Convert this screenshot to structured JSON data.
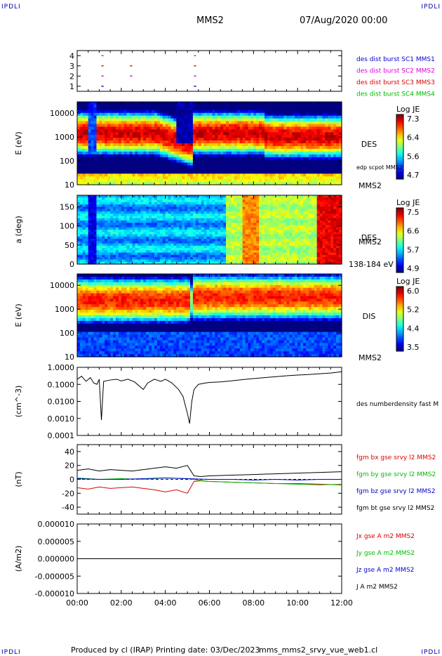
{
  "corners": {
    "tl": "IPDLI",
    "tr": "IPDLI",
    "bl": "IPDLI",
    "br": "IPDLI"
  },
  "header": {
    "spacecraft": "MMS2",
    "date": "07/Aug/2020 00:00"
  },
  "footer": {
    "produced_by": "Produced by cl (IRAP)",
    "printing_date": "Printing date: 03/Dec/2023",
    "file": "mms_mms2_srvy_vue_web1.cl"
  },
  "colors": {
    "red": "#dd0000",
    "green": "#00bb00",
    "blue": "#0000cc",
    "magenta": "#dd00dd",
    "black": "#000000"
  },
  "chart_data": [
    {
      "type": "scatter",
      "panel": "burst-availability",
      "yticks": [
        "1",
        "2",
        "3",
        "4"
      ],
      "ylim": [
        0.5,
        4.5
      ],
      "legend": [
        {
          "name": "des dist burst SC1 MMS1",
          "color": "#0000cc"
        },
        {
          "name": "des dist burst SC2 MMS2",
          "color": "#dd00dd"
        },
        {
          "name": "des dist burst SC3 MMS3",
          "color": "#dd0000"
        },
        {
          "name": "des dist burst SC4 MMS4",
          "color": "#00bb00"
        }
      ],
      "series": [
        {
          "sc": 1,
          "times_h": [
            1.1,
            5.3
          ]
        },
        {
          "sc": 2,
          "times_h": [
            1.1,
            2.4,
            5.3
          ]
        },
        {
          "sc": 3,
          "times_h": [
            1.1,
            2.4,
            5.3
          ]
        },
        {
          "sc": 4,
          "times_h": [
            1.1,
            5.3
          ]
        }
      ]
    },
    {
      "type": "heatmap",
      "panel": "des-energy",
      "ylabel": "E (eV)",
      "yscale": "log",
      "ylim": [
        10,
        30000
      ],
      "yticks": [
        "10",
        "100",
        "1000",
        "10000"
      ],
      "colorbar": {
        "label": "Log JE",
        "ticks": [
          "7.3",
          "6.4",
          "5.6",
          "4.7"
        ],
        "range": [
          4.7,
          7.3
        ]
      },
      "labels": {
        "instrument": "DES",
        "spacecraft": "MMS2",
        "overlay": "edp scpot MMS2"
      }
    },
    {
      "type": "heatmap",
      "panel": "des-pitch-angle",
      "ylabel": "a (deg)",
      "ylim": [
        0,
        180
      ],
      "yticks": [
        "0",
        "50",
        "100",
        "150"
      ],
      "colorbar": {
        "label": "Log JE",
        "ticks": [
          "7.5",
          "6.6",
          "5.7",
          "4.9"
        ],
        "range": [
          4.9,
          7.5
        ]
      },
      "labels": {
        "instrument": "DES",
        "spacecraft": "MMS2",
        "energy_range": "138-184 eV"
      }
    },
    {
      "type": "heatmap",
      "panel": "dis-energy",
      "ylabel": "E (eV)",
      "yscale": "log",
      "ylim": [
        10,
        30000
      ],
      "yticks": [
        "10",
        "100",
        "1000",
        "10000"
      ],
      "colorbar": {
        "label": "Log JE",
        "ticks": [
          "6.0",
          "5.2",
          "4.4",
          "3.5"
        ],
        "range": [
          3.5,
          6.0
        ]
      },
      "labels": {
        "instrument": "DIS",
        "spacecraft": "MMS2"
      }
    },
    {
      "type": "line",
      "panel": "density",
      "ylabel": "(cm^-3)",
      "yscale": "log",
      "ylim": [
        0.0001,
        1.0
      ],
      "yticks": [
        "1.0000",
        "0.1000",
        "0.0100",
        "0.0010",
        "0.0001"
      ],
      "series": [
        {
          "name": "des numberdensity fast M",
          "color": "#000000",
          "x": [
            0,
            0.2,
            0.4,
            0.6,
            0.75,
            0.9,
            1.0,
            1.1,
            1.2,
            1.5,
            1.8,
            2.0,
            2.3,
            2.6,
            3.0,
            3.2,
            3.5,
            3.8,
            4.0,
            4.3,
            4.6,
            4.8,
            5.0,
            5.1,
            5.2,
            5.3,
            5.5,
            5.8,
            6.0,
            6.5,
            7.0,
            7.5,
            8.0,
            8.5,
            9.0,
            9.5,
            10.0,
            10.5,
            11.0,
            11.5,
            12.0
          ],
          "y": [
            0.2,
            0.3,
            0.15,
            0.25,
            0.12,
            0.1,
            0.2,
            0.0008,
            0.15,
            0.18,
            0.2,
            0.16,
            0.2,
            0.14,
            0.05,
            0.12,
            0.2,
            0.15,
            0.2,
            0.12,
            0.05,
            0.02,
            0.002,
            0.0005,
            0.01,
            0.05,
            0.1,
            0.12,
            0.13,
            0.14,
            0.16,
            0.19,
            0.22,
            0.25,
            0.28,
            0.32,
            0.35,
            0.38,
            0.42,
            0.46,
            0.55
          ]
        }
      ]
    },
    {
      "type": "line",
      "panel": "magnetic-field",
      "ylabel": "(nT)",
      "ylim": [
        -50,
        50
      ],
      "yticks": [
        "40",
        "20",
        "0",
        "-20",
        "-40"
      ],
      "series": [
        {
          "name": "fgm bx gse srvy l2 MMS2",
          "color": "#dd0000",
          "x": [
            0,
            0.5,
            1.0,
            1.5,
            2.0,
            2.5,
            3.0,
            3.5,
            4.0,
            4.5,
            5.0,
            5.3,
            5.6,
            6.0,
            7.0,
            8.0,
            9.0,
            10.0,
            11.0,
            12.0
          ],
          "y": [
            -12,
            -14,
            -11,
            -13,
            -12,
            -11,
            -13,
            -15,
            -18,
            -15,
            -20,
            -3,
            -2,
            -3,
            -4,
            -5,
            -6,
            -6,
            -7,
            -8
          ]
        },
        {
          "name": "fgm by gse srvy l2 MMS2",
          "color": "#00bb00",
          "x": [
            0,
            1,
            2,
            3,
            4,
            5,
            5.5,
            6,
            7,
            8,
            9,
            10,
            11,
            12
          ],
          "y": [
            2,
            0,
            1,
            0,
            2,
            1,
            -1,
            -3,
            -4,
            -5,
            -6,
            -7,
            -8,
            -7
          ]
        },
        {
          "name": "fgm bz gse srvy l2 MMS2",
          "color": "#0000cc",
          "x": [
            0,
            1,
            2,
            3,
            4,
            5,
            6,
            7,
            8,
            9,
            10,
            11,
            12
          ],
          "y": [
            1,
            0,
            0,
            1,
            2,
            1,
            0,
            0,
            -1,
            0,
            -1,
            0,
            0
          ]
        },
        {
          "name": "fgm bt gse srvy l2 MMS2",
          "color": "#000000",
          "x": [
            0,
            0.5,
            1.0,
            1.5,
            2.0,
            2.5,
            3.0,
            3.5,
            4.0,
            4.5,
            5.0,
            5.3,
            5.6,
            6.0,
            7.0,
            8.0,
            9.0,
            10.0,
            11.0,
            12.0
          ],
          "y": [
            13,
            15,
            12,
            14,
            13,
            12,
            14,
            16,
            18,
            16,
            20,
            5,
            4,
            5,
            6,
            7,
            8,
            9,
            10,
            11
          ]
        }
      ]
    },
    {
      "type": "line",
      "panel": "current-density",
      "ylabel": "(A/m2)",
      "ylim": [
        -1e-05,
        1e-05
      ],
      "yticks": [
        "0.000010",
        "0.000005",
        "0.000000",
        "-0.000005",
        "-0.000010"
      ],
      "series": [
        {
          "name": "Jx gse A m2 MMS2",
          "color": "#dd0000",
          "x": [
            0,
            12
          ],
          "y": [
            0,
            0
          ]
        },
        {
          "name": "Jy gse A m2 MMS2",
          "color": "#00bb00",
          "x": [
            0,
            12
          ],
          "y": [
            0,
            0
          ]
        },
        {
          "name": "Jz gse A m2 MMS2",
          "color": "#0000cc",
          "x": [
            0,
            12
          ],
          "y": [
            0,
            0
          ]
        },
        {
          "name": "J A m2 MMS2",
          "color": "#000000",
          "x": [
            0,
            12
          ],
          "y": [
            0,
            0
          ]
        }
      ]
    }
  ],
  "time_axis": {
    "xlim_h": [
      0,
      12
    ],
    "ticks": [
      "00:00",
      "02:00",
      "04:00",
      "06:00",
      "08:00",
      "10:00",
      "12:00"
    ]
  }
}
